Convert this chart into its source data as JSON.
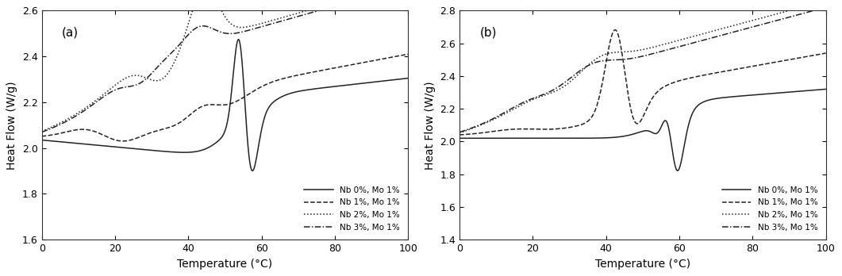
{
  "panel_a": {
    "label": "(a)",
    "ylim": [
      1.6,
      2.6
    ],
    "yticks": [
      1.6,
      1.8,
      2.0,
      2.2,
      2.4,
      2.6
    ],
    "xlim": [
      0,
      100
    ],
    "xticks": [
      0,
      20,
      40,
      60,
      80,
      100
    ],
    "ylabel": "Heat Flow (W/g)",
    "xlabel": "Temperature (°C)"
  },
  "panel_b": {
    "label": "(b)",
    "ylim": [
      1.4,
      2.8
    ],
    "yticks": [
      1.4,
      1.6,
      1.8,
      2.0,
      2.2,
      2.4,
      2.6,
      2.8
    ],
    "xlim": [
      0,
      100
    ],
    "xticks": [
      0,
      20,
      40,
      60,
      80,
      100
    ],
    "ylabel": "Heat Flow (W/g)",
    "xlabel": "Temperature (°C)"
  },
  "line_color": "#222222",
  "background_color": "#ffffff"
}
